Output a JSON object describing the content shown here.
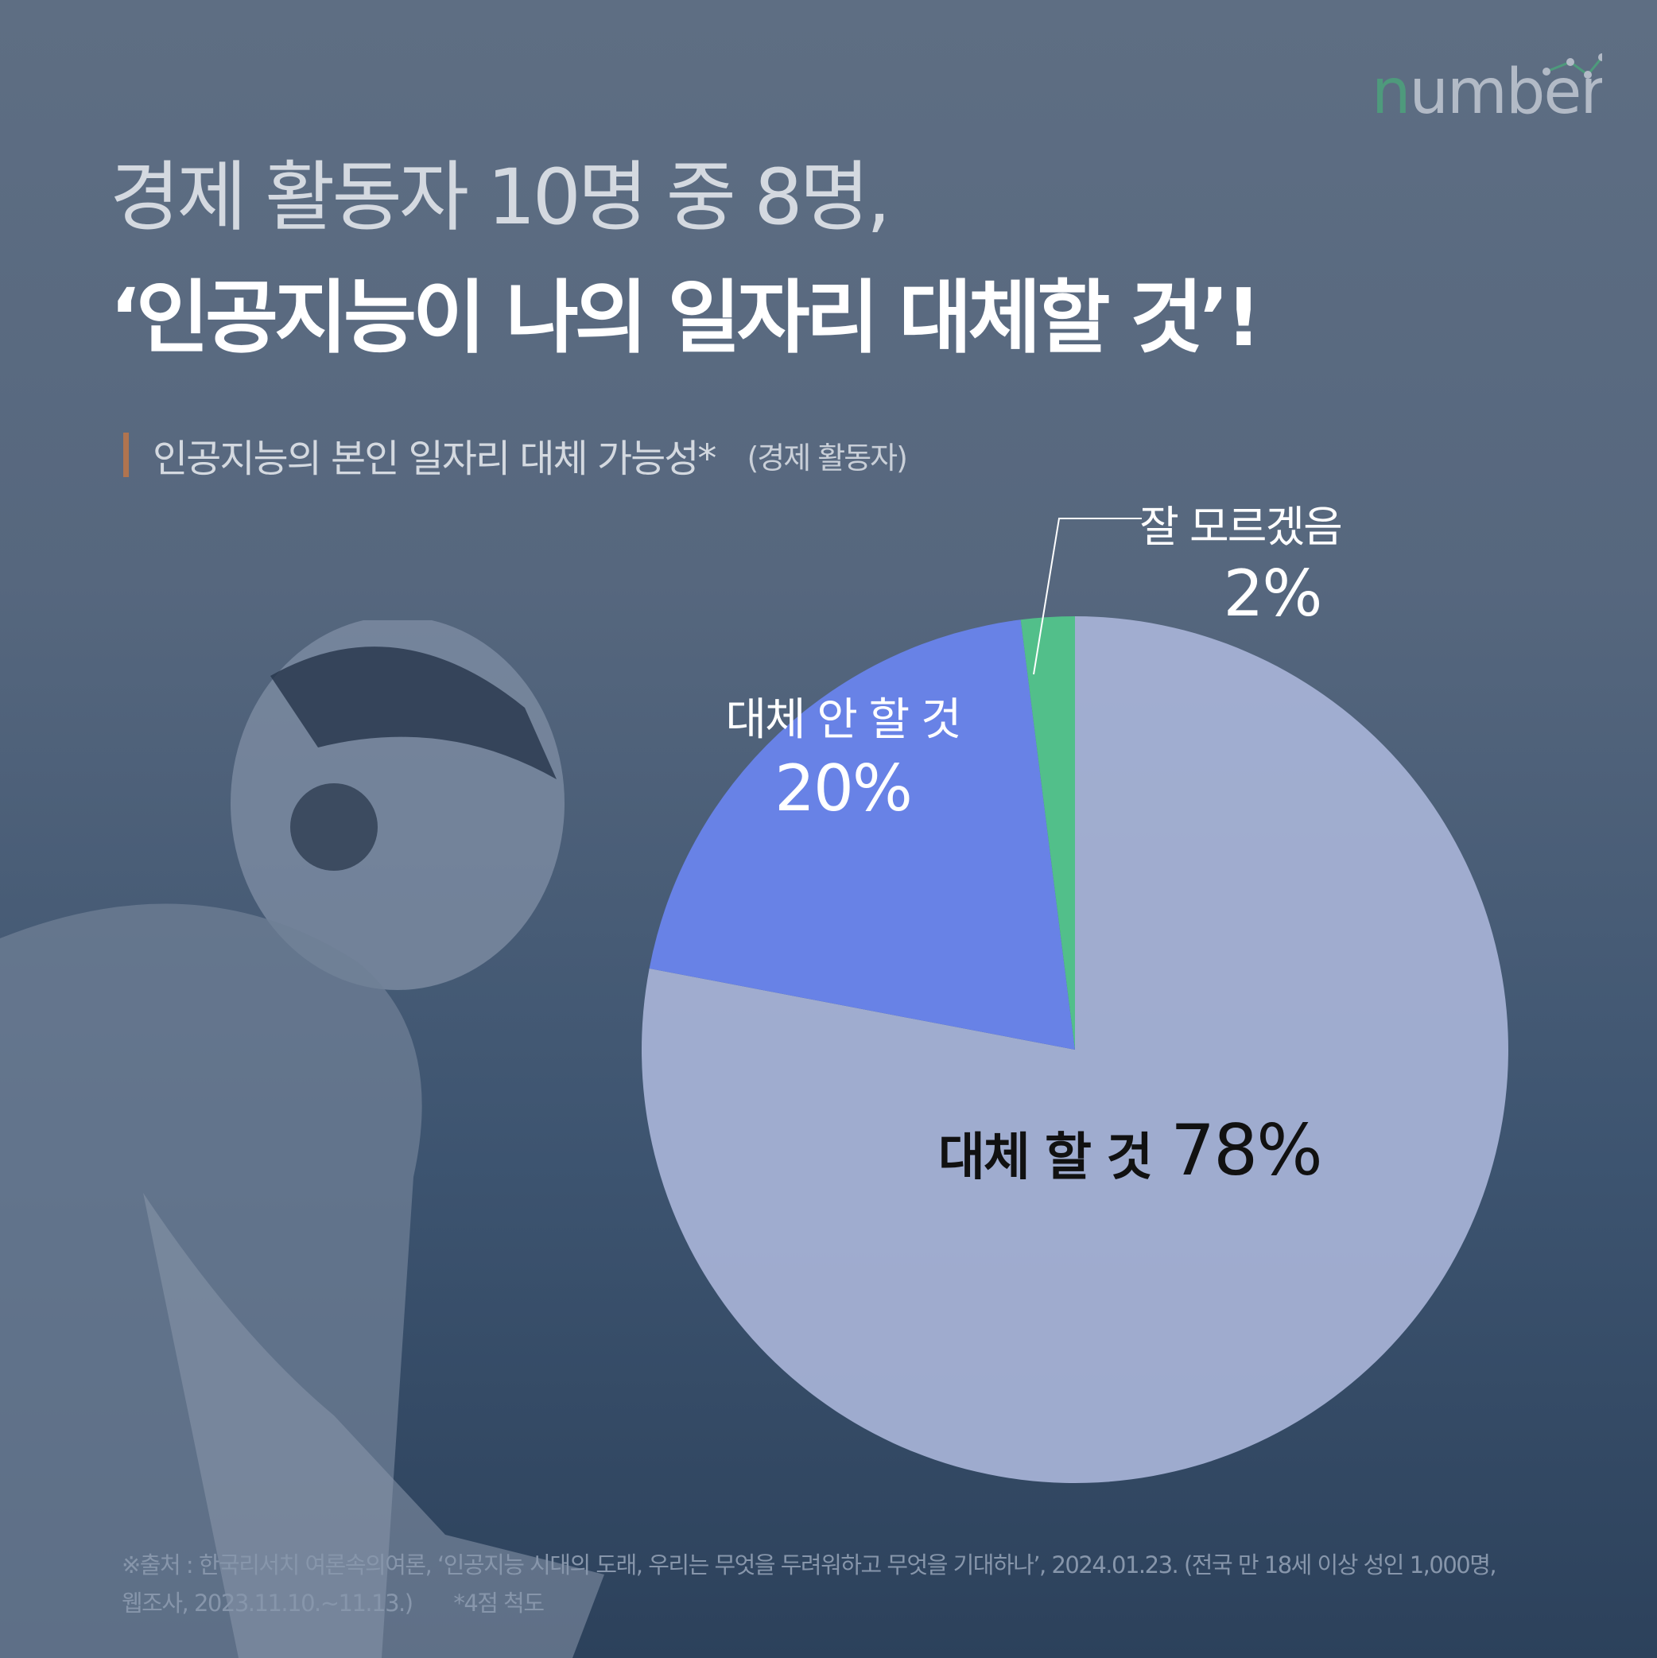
{
  "brand": {
    "logo_text": "numbers",
    "colors": {
      "logo_n": "#4e9a7c",
      "logo_rest": "#b2bac6"
    }
  },
  "title": {
    "line1": "경제 활동자 10명 중 8명,",
    "line2": "‘인공지능이 나의 일자리 대체할 것’!"
  },
  "chart_data": {
    "type": "pie",
    "title": "인공지능의 본인 일자리 대체 가능성*",
    "subtitle": "(경제 활동자)",
    "slices": [
      {
        "name": "대체 할 것",
        "value": 78,
        "label": "78%",
        "color": "#a7b3d6"
      },
      {
        "name": "대체 안 할 것",
        "value": 20,
        "label": "20%",
        "color": "#6882e6"
      },
      {
        "name": "잘 모르겠음",
        "value": 2,
        "label": "2%",
        "color": "#52bf8a"
      }
    ],
    "start": "12 o'clock",
    "direction": "clockwise"
  },
  "footer": {
    "line1": "※출처 : 한국리서치 여론속의여론, ‘인공지능 시대의 도래, 우리는 무엇을 두려워하고 무엇을 기대하나’, 2024.01.23. (전국 만 18세 이상 성인 1,000명,",
    "line2": "웹조사, 2023.11.10.~11.13.)",
    "note": "*4점 척도"
  }
}
